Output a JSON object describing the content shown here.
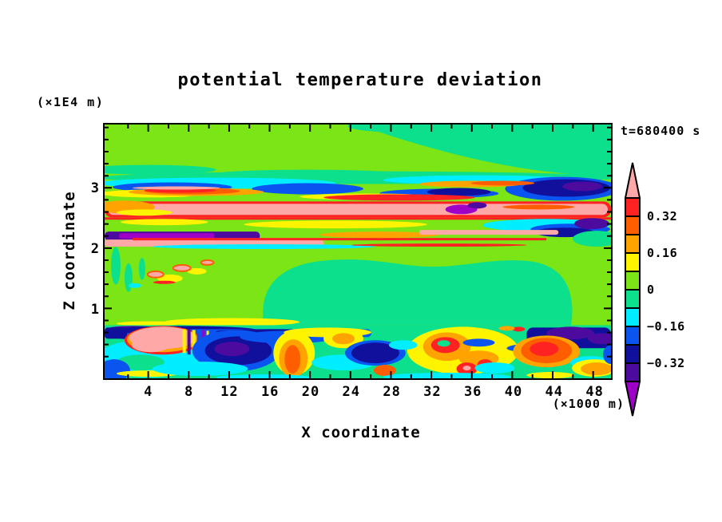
{
  "title": "potential temperature deviation",
  "timestamp": "t=680400 s",
  "axes": {
    "x": {
      "label": "X coordinate",
      "unit": "(×1000 m)",
      "range": [
        0,
        50
      ],
      "major_ticks": [
        4,
        8,
        12,
        16,
        20,
        24,
        28,
        32,
        36,
        40,
        44,
        48
      ],
      "minor_step": 2
    },
    "y": {
      "label": "Z coordinate",
      "unit": "(×1E4 m)",
      "range": [
        0,
        4.2
      ],
      "major_ticks": [
        1,
        2,
        3
      ],
      "minor_step": 0.2
    }
  },
  "palette": {
    "pink": "#FFA8A8",
    "red": "#FF2222",
    "orangered": "#FF5E00",
    "orange": "#FFA300",
    "yellow": "#FFF400",
    "lime": "#7BE516",
    "spring": "#0CE08C",
    "cyan": "#00EEFF",
    "blue": "#0A54F0",
    "navy": "#10109C",
    "indigo": "#4C0B9E",
    "purple": "#9E00C8"
  },
  "colorbar": {
    "over_color_name": "pink",
    "under_color_name": "purple",
    "segment_color_names": [
      "red",
      "orangered",
      "orange",
      "yellow",
      "lime",
      "spring",
      "cyan",
      "blue",
      "navy",
      "indigo"
    ],
    "boundary_labels": [
      "0.32",
      "0.16",
      "0",
      "−0.16",
      "−0.32"
    ]
  },
  "chart_data": {
    "type": "heatmap",
    "title": "potential temperature deviation",
    "xlabel": "X coordinate (×1000 m)",
    "ylabel": "Z coordinate (×1E4 m)",
    "x_range": [
      0,
      50
    ],
    "y_range": [
      0,
      4.2
    ],
    "time_label": "t=680400 s",
    "contour_interval": 0.08,
    "levels": [
      -0.4,
      -0.32,
      -0.24,
      -0.16,
      -0.08,
      0,
      0.08,
      0.16,
      0.24,
      0.32,
      0.4
    ],
    "labeled_levels": [
      0.32,
      0.16,
      0,
      -0.16,
      -0.32
    ],
    "level_colors": {
      "gt_0.40": "#FFA8A8",
      "0.32_0.40": "#FF2222",
      "0.24_0.32": "#FF5E00",
      "0.16_0.24": "#FFA300",
      "0.08_0.16": "#FFF400",
      "0.00_0.08": "#7BE516",
      "-0.08_0.00": "#0CE08C",
      "-0.16_-0.08": "#00EEFF",
      "-0.24_-0.16": "#0A54F0",
      "-0.32_-0.24": "#10109C",
      "-0.40_-0.32": "#4C0B9E",
      "lt_-0.40": "#9E00C8"
    },
    "legend_position": "right-colorbar",
    "grid": false,
    "field_structure": [
      {
        "z_range": [
          3.15,
          4.2
        ],
        "x_range": [
          0,
          50
        ],
        "summary": "quiescent upper region, values 0 to +0.08 (light green) with a broad −0.08 to 0 (green) pool over x≈26–50"
      },
      {
        "z_range": [
          2.85,
          3.15
        ],
        "x_range": [
          0,
          50
        ],
        "summary": "turbulent shear layer: horizontal streaks alternating from −0.32 to +0.40; dark blue minima near x≈42–50, red/orange maxima near x≈0–16 and 24–37"
      },
      {
        "z_range": [
          2.4,
          2.85
        ],
        "x_range": [
          0,
          50
        ],
        "summary": "strong inversion band, values > +0.40 (pink) bounded by thin red streaks; isolated < −0.40 (purple) spots near x≈25 and 34–37"
      },
      {
        "z_range": [
          2.1,
          2.4
        ],
        "x_range": [
          0,
          50
        ],
        "summary": "thin layered streaks: pink/red maxima interleaved with indigo/purple minima; cyan-blue-navy pocket near x≈33–40"
      },
      {
        "z_range": [
          0.8,
          2.1
        ],
        "x_range": [
          0,
          50
        ],
        "summary": "quiescent interior, 0 to +0.08 (light green) with a large −0.08 to 0 (green) pool at x≈18–47; small pink/yellow/red wisps near x≈3–12, z≈1.7–1.9"
      },
      {
        "z_range": [
          0.0,
          0.8
        ],
        "x_range": [
          0,
          50
        ],
        "summary": "convective boundary layer: eddies spanning < −0.40 to > +0.40; pink plume at x≈4–8, dark blue/indigo pools at x≈10–17 and 42–50, strong warm plumes at x≈18–20, 30–34 and 40–47, small pink-cored vortex at x≈36"
      }
    ]
  }
}
